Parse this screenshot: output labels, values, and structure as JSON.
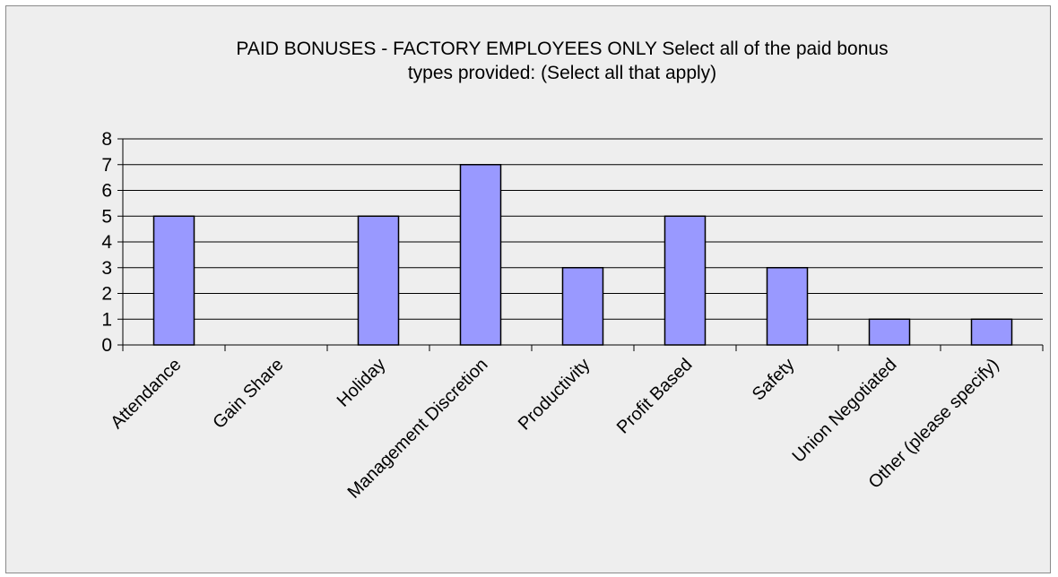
{
  "chart_data": {
    "type": "bar",
    "title_lines": [
      "PAID BONUSES - FACTORY EMPLOYEES ONLY Select all of the paid bonus",
      "types provided: (Select all that apply)"
    ],
    "categories": [
      "Attendance",
      "Gain Share",
      "Holiday",
      "Management Discretion",
      "Productivity",
      "Profit Based",
      "Safety",
      "Union Negotiated",
      "Other (please specify)"
    ],
    "values": [
      5,
      0,
      5,
      7,
      3,
      5,
      3,
      1,
      1
    ],
    "ylim": [
      0,
      8
    ],
    "yticks": [
      0,
      1,
      2,
      3,
      4,
      5,
      6,
      7,
      8
    ],
    "grid": true,
    "legend": "none",
    "colors": {
      "bar_fill": "#9999ff",
      "bar_stroke": "#000000",
      "gridline": "#000000",
      "background": "#eeeeee"
    }
  }
}
